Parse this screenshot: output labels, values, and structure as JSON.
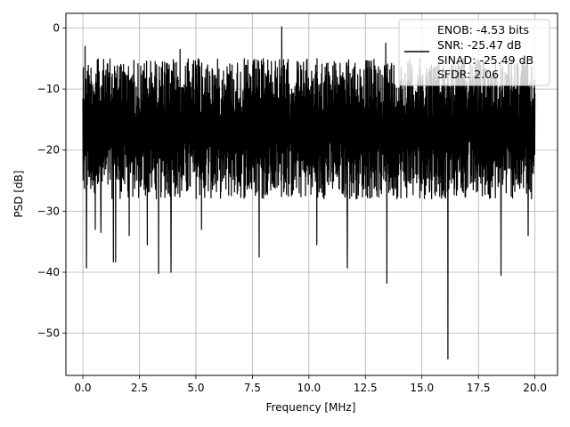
{
  "chart_data": {
    "type": "line",
    "xlabel": "Frequency [MHz]",
    "ylabel": "PSD [dB]",
    "xlim": [
      -0.75,
      21.0
    ],
    "ylim": [
      -56.9,
      2.4
    ],
    "xticks": [
      0.0,
      2.5,
      5.0,
      7.5,
      10.0,
      12.5,
      15.0,
      17.5,
      20.0
    ],
    "xtick_labels": [
      "0.0",
      "2.5",
      "5.0",
      "7.5",
      "10.0",
      "12.5",
      "15.0",
      "17.5",
      "20.0"
    ],
    "yticks": [
      0,
      -10,
      -20,
      -30,
      -40,
      -50
    ],
    "ytick_labels": [
      "0",
      "−10",
      "−20",
      "−30",
      "−40",
      "−50"
    ],
    "grid": true,
    "legend": {
      "placement": "top-right",
      "entries": [
        "ENOB: -4.53 bits",
        "SNR: -25.47 dB",
        "SINAD: -25.49 dB",
        "SFDR: 2.06"
      ]
    },
    "line_color": "#000000",
    "x_range": [
      0.0,
      20.0
    ],
    "noise_floor_db": [
      -28.0,
      -5.0
    ],
    "spikes": [
      {
        "x": 0.02,
        "y": -6.5
      },
      {
        "x": 0.08,
        "y": -12.0
      },
      {
        "x": 0.1,
        "y": -3.0
      },
      {
        "x": 0.16,
        "y": -39.3
      },
      {
        "x": 0.55,
        "y": -33.0
      },
      {
        "x": 0.8,
        "y": -33.5
      },
      {
        "x": 1.35,
        "y": -38.3
      },
      {
        "x": 1.45,
        "y": -38.3
      },
      {
        "x": 2.05,
        "y": -34.0
      },
      {
        "x": 2.85,
        "y": -35.5
      },
      {
        "x": 3.35,
        "y": -40.2
      },
      {
        "x": 3.9,
        "y": -40.0
      },
      {
        "x": 4.3,
        "y": -3.5
      },
      {
        "x": 5.25,
        "y": -33.0
      },
      {
        "x": 7.8,
        "y": -37.5
      },
      {
        "x": 8.8,
        "y": 0.2
      },
      {
        "x": 10.35,
        "y": -35.5
      },
      {
        "x": 11.7,
        "y": -39.3
      },
      {
        "x": 13.45,
        "y": -41.8
      },
      {
        "x": 13.4,
        "y": -2.5
      },
      {
        "x": 16.15,
        "y": -54.2
      },
      {
        "x": 18.5,
        "y": -40.5
      },
      {
        "x": 19.7,
        "y": -34.0
      }
    ]
  }
}
